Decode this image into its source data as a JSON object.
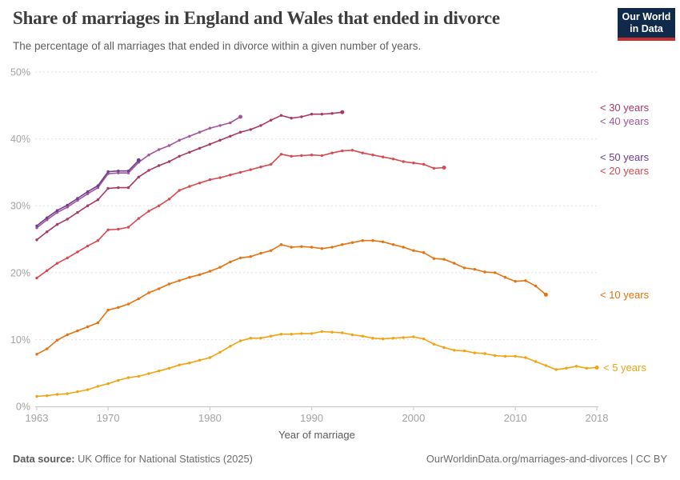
{
  "header": {
    "title": "Share of marriages in England and Wales that ended in divorce",
    "subtitle": "The percentage of all marriages that ended in divorce within a given number of years.",
    "logo": {
      "line1": "Our World",
      "line2": "in Data",
      "bg_color": "#102a4c",
      "stripe_color": "#c5302f"
    }
  },
  "chart_data": {
    "type": "line",
    "title": "Share of marriages in England and Wales that ended in divorce",
    "xlabel": "Year of marriage",
    "ylabel": "",
    "xlim": [
      1963,
      2018
    ],
    "ylim": [
      0,
      50
    ],
    "grid": "horizontal-dashed",
    "legend_position": "right-end-labels",
    "x_ticks": [
      1963,
      1970,
      1980,
      1990,
      2000,
      2010,
      2018
    ],
    "y_ticks": [
      0,
      10,
      20,
      30,
      40,
      50
    ],
    "y_tick_labels": [
      "0%",
      "10%",
      "20%",
      "30%",
      "40%",
      "50%"
    ],
    "series": [
      {
        "name": "< 50 years",
        "color": "#6d3e91",
        "start_year": 1963,
        "end_year": 1973,
        "values": [
          27.0,
          28.2,
          29.3,
          30.1,
          31.1,
          32.1,
          33.0,
          35.1,
          35.2,
          35.2,
          36.8
        ]
      },
      {
        "name": "< 40 years",
        "color": "#a2559c",
        "start_year": 1963,
        "end_year": 1983,
        "values": [
          26.7,
          27.9,
          29.0,
          29.8,
          30.8,
          31.8,
          32.7,
          34.8,
          34.9,
          34.9,
          36.5,
          37.6,
          38.4,
          39.0,
          39.8,
          40.4,
          41.0,
          41.6,
          42.0,
          42.4,
          43.3
        ]
      },
      {
        "name": "< 30 years",
        "color": "#a83866",
        "start_year": 1963,
        "end_year": 1993,
        "values": [
          24.9,
          26.1,
          27.2,
          28.0,
          29.0,
          30.0,
          30.9,
          32.6,
          32.7,
          32.7,
          34.3,
          35.3,
          36.0,
          36.6,
          37.4,
          38.0,
          38.6,
          39.2,
          39.8,
          40.4,
          41.0,
          41.4,
          42.0,
          42.8,
          43.5,
          43.1,
          43.3,
          43.7,
          43.7,
          43.8,
          44.0
        ]
      },
      {
        "name": "< 20 years",
        "color": "#d84a52",
        "start_year": 1963,
        "end_year": 2003,
        "values": [
          19.2,
          20.3,
          21.4,
          22.2,
          23.1,
          24.0,
          24.8,
          26.4,
          26.5,
          26.8,
          28.1,
          29.2,
          30.0,
          31.0,
          32.3,
          32.9,
          33.4,
          33.9,
          34.2,
          34.6,
          35.0,
          35.4,
          35.8,
          36.2,
          37.7,
          37.4,
          37.5,
          37.6,
          37.5,
          37.9,
          38.2,
          38.3,
          37.9,
          37.6,
          37.3,
          37.0,
          36.6,
          36.4,
          36.2,
          35.6,
          35.7
        ]
      },
      {
        "name": "< 10 years",
        "color": "#e8720d",
        "start_year": 1963,
        "end_year": 2013,
        "values": [
          7.8,
          8.6,
          9.9,
          10.7,
          11.3,
          11.9,
          12.5,
          14.4,
          14.8,
          15.3,
          16.1,
          17.0,
          17.6,
          18.3,
          18.8,
          19.3,
          19.7,
          20.2,
          20.8,
          21.6,
          22.2,
          22.4,
          22.9,
          23.3,
          24.2,
          23.8,
          23.9,
          23.8,
          23.6,
          23.8,
          24.2,
          24.5,
          24.8,
          24.8,
          24.6,
          24.2,
          23.8,
          23.3,
          23.0,
          22.1,
          22.0,
          21.4,
          20.7,
          20.5,
          20.1,
          20.0,
          19.3,
          18.7,
          18.8,
          18.0,
          16.7
        ]
      },
      {
        "name": "< 5 years",
        "color": "#f2a312",
        "start_year": 1963,
        "end_year": 2018,
        "values": [
          1.5,
          1.6,
          1.8,
          1.9,
          2.2,
          2.5,
          3.0,
          3.4,
          3.9,
          4.3,
          4.5,
          4.9,
          5.3,
          5.7,
          6.2,
          6.5,
          6.9,
          7.3,
          8.1,
          9.0,
          9.8,
          10.2,
          10.2,
          10.5,
          10.8,
          10.8,
          10.9,
          10.9,
          11.2,
          11.1,
          11.0,
          10.7,
          10.5,
          10.2,
          10.1,
          10.2,
          10.3,
          10.4,
          10.1,
          9.3,
          8.8,
          8.4,
          8.3,
          8.0,
          7.9,
          7.6,
          7.5,
          7.5,
          7.3,
          6.7,
          6.1,
          5.5,
          5.7,
          6.0,
          5.7,
          5.8
        ]
      }
    ]
  },
  "footer": {
    "source_label": "Data source:",
    "source_text": " UK Office for National Statistics (2025)",
    "credit": "OurWorldinData.org/marriages-and-divorces | CC BY"
  }
}
